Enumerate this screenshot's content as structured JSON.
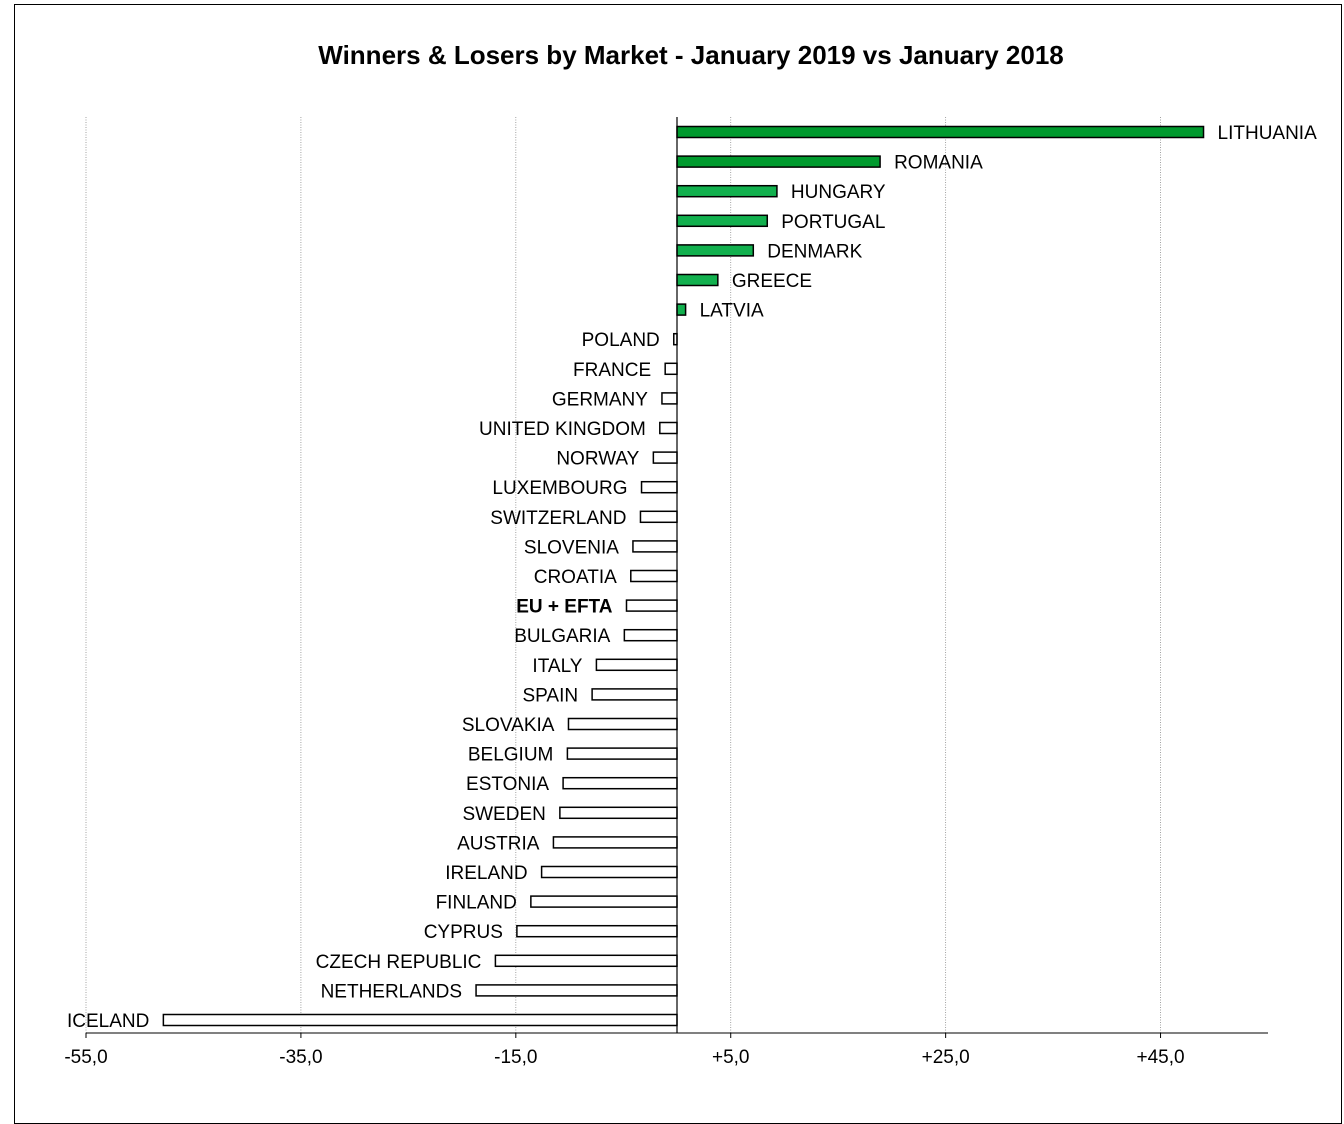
{
  "chart_data": {
    "type": "bar",
    "orientation": "horizontal",
    "title": "Winners & Losers by Market - January 2019 vs January 2018",
    "xlabel": "",
    "ylabel": "",
    "xlim": [
      -55,
      55
    ],
    "x_ticks": [
      "-55,0",
      "-35,0",
      "-15,0",
      "+5,0",
      "+25,0",
      "+45,0"
    ],
    "tick_values": [
      -55,
      -35,
      -15,
      5,
      25,
      45
    ],
    "grid": true,
    "legend": "none",
    "bold_categories": [
      "EU + EFTA"
    ],
    "colors": {
      "strong_gain": "#009a2e",
      "gain": "#12b04e",
      "loss": "#ffffff",
      "outline": "#000000"
    },
    "categories": [
      "LITHUANIA",
      "ROMANIA",
      "HUNGARY",
      "PORTUGAL",
      "DENMARK",
      "GREECE",
      "LATVIA",
      "POLAND",
      "FRANCE",
      "GERMANY",
      "UNITED KINGDOM",
      "NORWAY",
      "LUXEMBOURG",
      "SWITZERLAND",
      "SLOVENIA",
      "CROATIA",
      "EU + EFTA",
      "BULGARIA",
      "ITALY",
      "SPAIN",
      "SLOVAKIA",
      "BELGIUM",
      "ESTONIA",
      "SWEDEN",
      "AUSTRIA",
      "IRELAND",
      "FINLAND",
      "CYPRUS",
      "CZECH REPUBLIC",
      "NETHERLANDS",
      "ICELAND"
    ],
    "values": [
      49.0,
      18.9,
      9.3,
      8.4,
      7.1,
      3.8,
      0.8,
      -0.3,
      -1.1,
      -1.4,
      -1.6,
      -2.2,
      -3.3,
      -3.4,
      -4.1,
      -4.3,
      -4.7,
      -4.9,
      -7.5,
      -7.9,
      -10.1,
      -10.2,
      -10.6,
      -10.9,
      -11.5,
      -12.6,
      -13.6,
      -14.9,
      -16.9,
      -18.7,
      -47.8
    ]
  }
}
